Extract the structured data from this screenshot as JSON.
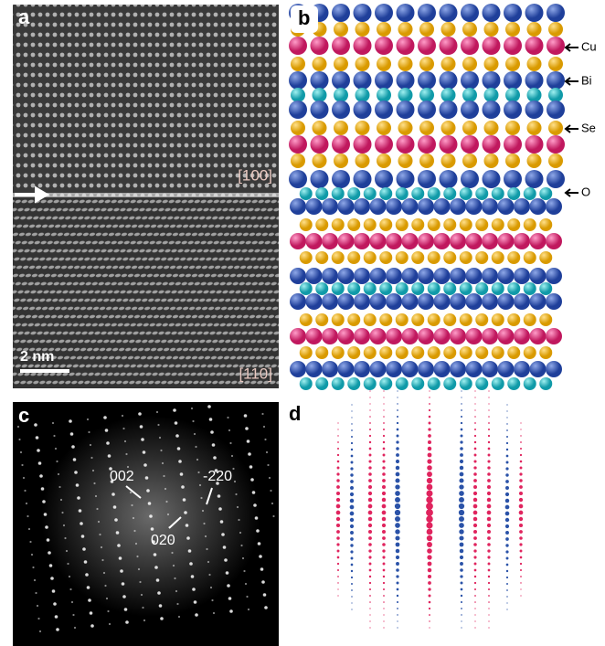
{
  "panels": [
    {
      "label": "a",
      "annotations": [
        "[100]",
        "[110]"
      ],
      "scale_bar": "2 nm"
    },
    {
      "label": "b",
      "atom_labels": [
        "Cu",
        "Bi",
        "Se",
        "O"
      ]
    },
    {
      "label": "c",
      "spot_labels": [
        "002",
        "020",
        "-220"
      ]
    },
    {
      "label": "d"
    }
  ]
}
